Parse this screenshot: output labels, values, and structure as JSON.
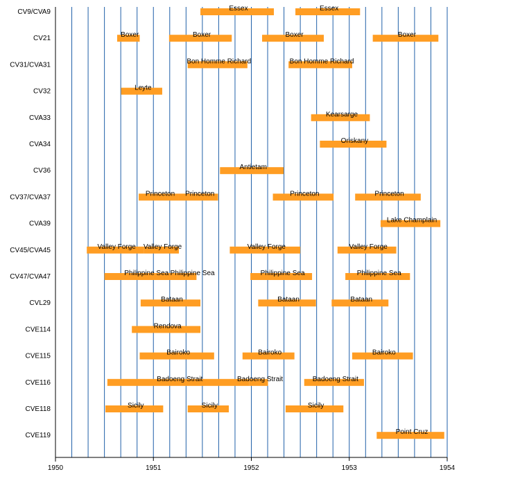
{
  "chart_data": {
    "type": "gantt",
    "title": "",
    "xlabel": "",
    "ylabel": "",
    "xlim": [
      1950.0,
      1954.0
    ],
    "xticks": [
      "1950",
      "1951",
      "1952",
      "1953",
      "1954"
    ],
    "grid": "vertical",
    "grid_color": "#1f5fa8",
    "bar_color": "#ff9d23",
    "rows": [
      {
        "label": "CV9/CVA9",
        "bars": [
          {
            "start": 1951.48,
            "end": 1952.23,
            "text": "Essex"
          },
          {
            "start": 1952.45,
            "end": 1953.11,
            "text": "Essex"
          }
        ]
      },
      {
        "label": "CV21",
        "bars": [
          {
            "start": 1950.63,
            "end": 1950.86,
            "text": "Boxer"
          },
          {
            "start": 1951.16,
            "end": 1951.8,
            "text": "Boxer"
          },
          {
            "start": 1952.11,
            "end": 1952.74,
            "text": "Boxer"
          },
          {
            "start": 1953.24,
            "end": 1953.91,
            "text": "Boxer"
          }
        ]
      },
      {
        "label": "CV31/CVA31",
        "bars": [
          {
            "start": 1951.35,
            "end": 1951.96,
            "text": "Bon Homme Richard"
          },
          {
            "start": 1952.38,
            "end": 1953.03,
            "text": "Bon Homme Richard"
          }
        ]
      },
      {
        "label": "CV32",
        "bars": [
          {
            "start": 1950.67,
            "end": 1951.09,
            "text": "Leyte"
          }
        ]
      },
      {
        "label": "CVA33",
        "bars": [
          {
            "start": 1952.61,
            "end": 1953.21,
            "text": "Kearsarge"
          }
        ]
      },
      {
        "label": "CVA34",
        "bars": [
          {
            "start": 1952.7,
            "end": 1953.38,
            "text": "Oriskany"
          }
        ]
      },
      {
        "label": "CV36",
        "bars": [
          {
            "start": 1951.68,
            "end": 1952.33,
            "text": "Antietam"
          }
        ]
      },
      {
        "label": "CV37/CVA37",
        "bars": [
          {
            "start": 1950.85,
            "end": 1951.26,
            "text": "Princeton"
          },
          {
            "start": 1951.26,
            "end": 1951.66,
            "text": "Princeton"
          },
          {
            "start": 1952.22,
            "end": 1952.84,
            "text": "Princeton"
          },
          {
            "start": 1953.06,
            "end": 1953.73,
            "text": "Princeton"
          }
        ]
      },
      {
        "label": "CVA39",
        "bars": [
          {
            "start": 1953.32,
            "end": 1953.93,
            "text": "Lake Champlain"
          }
        ]
      },
      {
        "label": "CV45/CVA45",
        "bars": [
          {
            "start": 1950.32,
            "end": 1950.9,
            "text": "Valley Forge"
          },
          {
            "start": 1950.9,
            "end": 1951.26,
            "text": "Valley Forge"
          },
          {
            "start": 1951.78,
            "end": 1952.5,
            "text": "Valley Forge"
          },
          {
            "start": 1952.88,
            "end": 1953.48,
            "text": "Valley Forge"
          }
        ]
      },
      {
        "label": "CV47/CVA47",
        "bars": [
          {
            "start": 1950.5,
            "end": 1951.33,
            "text": "Philippine Sea"
          },
          {
            "start": 1951.33,
            "end": 1951.44,
            "text": "Philippine Sea"
          },
          {
            "start": 1951.99,
            "end": 1952.62,
            "text": "Philippine Sea"
          },
          {
            "start": 1952.96,
            "end": 1953.62,
            "text": "Philippine Sea"
          }
        ]
      },
      {
        "label": "CVL29",
        "bars": [
          {
            "start": 1950.87,
            "end": 1951.48,
            "text": "Bataan"
          },
          {
            "start": 1952.07,
            "end": 1952.66,
            "text": "Bataan"
          },
          {
            "start": 1952.82,
            "end": 1953.4,
            "text": "Bataan"
          }
        ]
      },
      {
        "label": "CVE114",
        "bars": [
          {
            "start": 1950.78,
            "end": 1951.48,
            "text": "Rendova"
          }
        ]
      },
      {
        "label": "CVE115",
        "bars": [
          {
            "start": 1950.86,
            "end": 1951.62,
            "text": "Bairoko"
          },
          {
            "start": 1951.91,
            "end": 1952.44,
            "text": "Bairoko"
          },
          {
            "start": 1953.03,
            "end": 1953.65,
            "text": "Bairoko"
          }
        ]
      },
      {
        "label": "CVE116",
        "bars": [
          {
            "start": 1950.53,
            "end": 1951.98,
            "text": "Badoeng Strait"
          },
          {
            "start": 1951.98,
            "end": 1952.17,
            "text": "Badoeng Strait"
          },
          {
            "start": 1952.54,
            "end": 1953.15,
            "text": "Badoeng Strait"
          }
        ]
      },
      {
        "label": "CVE118",
        "bars": [
          {
            "start": 1950.51,
            "end": 1951.1,
            "text": "Sicily"
          },
          {
            "start": 1951.35,
            "end": 1951.77,
            "text": "Sicily"
          },
          {
            "start": 1952.35,
            "end": 1952.94,
            "text": "Sicily"
          }
        ]
      },
      {
        "label": "CVE119",
        "bars": [
          {
            "start": 1953.28,
            "end": 1953.97,
            "text": "Point Cruz"
          }
        ]
      }
    ]
  }
}
